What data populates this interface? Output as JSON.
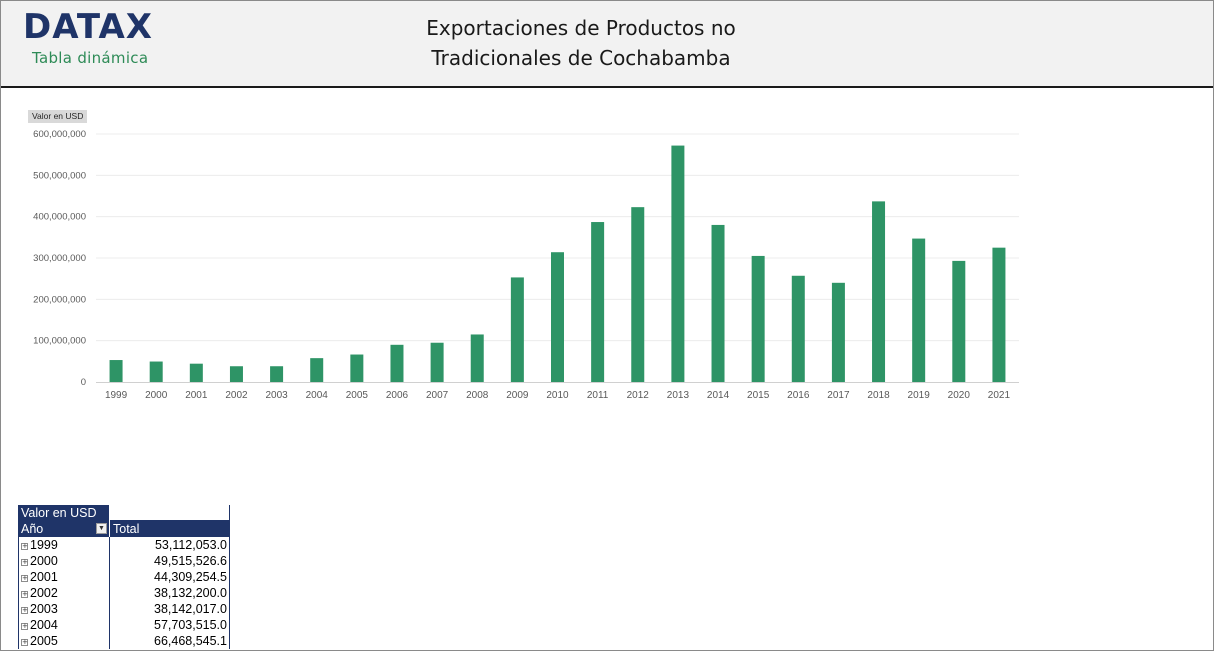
{
  "header": {
    "logo": "DATAX",
    "logo_sub": "Tabla dinámica",
    "title_line1": "Exportaciones de Productos no",
    "title_line2": "Tradicionales de Cochabamba"
  },
  "chart": {
    "field_button": "Valor en USD"
  },
  "chart_data": {
    "type": "bar",
    "title": "",
    "xlabel": "",
    "ylabel": "",
    "color": "#2e9466",
    "categories": [
      "1999",
      "2000",
      "2001",
      "2002",
      "2003",
      "2004",
      "2005",
      "2006",
      "2007",
      "2008",
      "2009",
      "2010",
      "2011",
      "2012",
      "2013",
      "2014",
      "2015",
      "2016",
      "2017",
      "2018",
      "2019",
      "2020",
      "2021"
    ],
    "values": [
      53112053,
      49515527,
      44309254,
      38132200,
      38142017,
      57703515,
      66468545,
      90000000,
      95000000,
      115000000,
      253000000,
      314000000,
      387000000,
      423000000,
      572000000,
      380000000,
      305000000,
      257000000,
      240000000,
      437000000,
      347000000,
      293000000,
      325000000
    ],
    "ylim": [
      0,
      600000000
    ],
    "yticks": [
      "0",
      "100,000,000",
      "200,000,000",
      "300,000,000",
      "400,000,000",
      "500,000,000",
      "600,000,000"
    ],
    "grid": true,
    "legend": "none"
  },
  "pivot": {
    "field_label": "Valor en USD",
    "row_header": "Año",
    "col_header": "Total",
    "expand_symbol": "+",
    "rows": [
      {
        "year": "1999",
        "value": "53,112,053.0"
      },
      {
        "year": "2000",
        "value": "49,515,526.6"
      },
      {
        "year": "2001",
        "value": "44,309,254.5"
      },
      {
        "year": "2002",
        "value": "38,132,200.0"
      },
      {
        "year": "2003",
        "value": "38,142,017.0"
      },
      {
        "year": "2004",
        "value": "57,703,515.0"
      },
      {
        "year": "2005",
        "value": "66,468,545.1"
      }
    ]
  }
}
